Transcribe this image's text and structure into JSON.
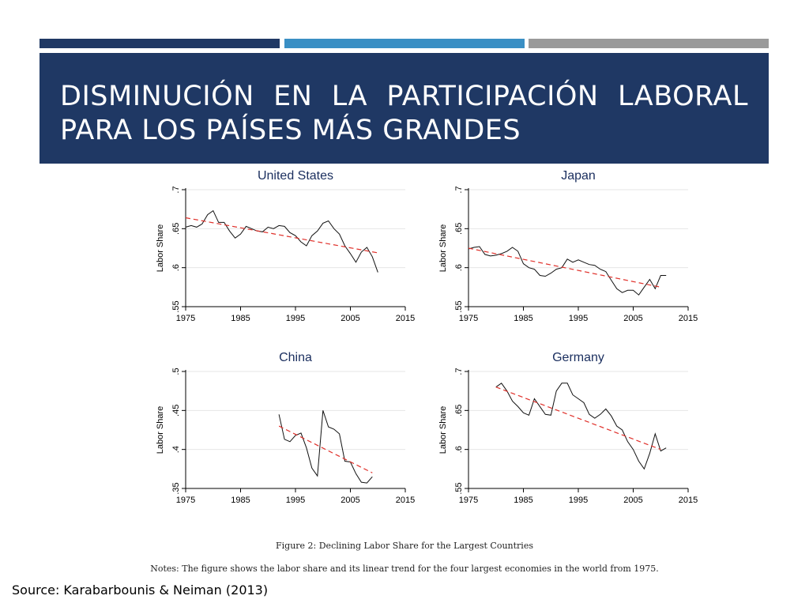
{
  "header": {
    "title": "DISMINUCIÓN EN LA PARTICIPACIÓN LABORAL PARA LOS PAÍSES MÁS GRANDES",
    "colors": {
      "bar_dark": "#1f3864",
      "bar_blue": "#3a8fc4",
      "bar_gray": "#9a9a9a"
    }
  },
  "figure_caption": "Figure 2: Declining Labor Share for the Largest Countries",
  "notes": "Notes: The figure shows the labor share and its linear trend for the four largest economies in the world from 1975.",
  "source": "Source: Karabarbounis & Neiman (2013)",
  "chart_data": [
    {
      "type": "line",
      "title": "United States",
      "ylabel": "Labor Share",
      "xlim": [
        1975,
        2015
      ],
      "ylim": [
        0.55,
        0.7
      ],
      "xticks": [
        "1975",
        "1985",
        "1995",
        "2005",
        "2015"
      ],
      "yticks": [
        ".55",
        ".6",
        ".65",
        ".7"
      ],
      "ytick_values": [
        0.55,
        0.6,
        0.65,
        0.7
      ],
      "grid": true,
      "series": [
        {
          "x": [
            1975,
            1976,
            1977,
            1978,
            1979,
            1980,
            1981,
            1982,
            1983,
            1984,
            1985,
            1986,
            1987,
            1988,
            1989,
            1990,
            1991,
            1992,
            1993,
            1994,
            1995,
            1996,
            1997,
            1998,
            1999,
            2000,
            2001,
            2002,
            2003,
            2004,
            2005,
            2006,
            2007,
            2008,
            2009,
            2010
          ],
          "values": [
            0.652,
            0.654,
            0.652,
            0.656,
            0.668,
            0.673,
            0.658,
            0.658,
            0.647,
            0.638,
            0.643,
            0.653,
            0.65,
            0.647,
            0.646,
            0.652,
            0.65,
            0.654,
            0.653,
            0.645,
            0.641,
            0.633,
            0.628,
            0.641,
            0.647,
            0.657,
            0.66,
            0.65,
            0.643,
            0.628,
            0.618,
            0.607,
            0.62,
            0.626,
            0.614,
            0.594
          ]
        }
      ],
      "trend": {
        "x": [
          1975,
          2010
        ],
        "values": [
          0.664,
          0.619
        ],
        "color": "#e0302a"
      }
    },
    {
      "type": "line",
      "title": "Japan",
      "ylabel": "Labor Share",
      "xlim": [
        1975,
        2015
      ],
      "ylim": [
        0.55,
        0.7
      ],
      "xticks": [
        "1975",
        "1985",
        "1995",
        "2005",
        "2015"
      ],
      "yticks": [
        ".55",
        ".6",
        ".65",
        ".7"
      ],
      "ytick_values": [
        0.55,
        0.6,
        0.65,
        0.7
      ],
      "grid": true,
      "series": [
        {
          "x": [
            1975,
            1976,
            1977,
            1978,
            1979,
            1980,
            1981,
            1982,
            1983,
            1984,
            1985,
            1986,
            1987,
            1988,
            1989,
            1990,
            1991,
            1992,
            1993,
            1994,
            1995,
            1996,
            1997,
            1998,
            1999,
            2000,
            2001,
            2002,
            2003,
            2004,
            2005,
            2006,
            2007,
            2008,
            2009,
            2010,
            2011
          ],
          "values": [
            0.624,
            0.626,
            0.627,
            0.617,
            0.615,
            0.616,
            0.618,
            0.621,
            0.626,
            0.621,
            0.605,
            0.6,
            0.598,
            0.59,
            0.589,
            0.593,
            0.598,
            0.6,
            0.611,
            0.607,
            0.61,
            0.607,
            0.604,
            0.603,
            0.598,
            0.595,
            0.584,
            0.573,
            0.568,
            0.571,
            0.571,
            0.565,
            0.575,
            0.585,
            0.573,
            0.59,
            0.59
          ]
        }
      ],
      "trend": {
        "x": [
          1975,
          2010
        ],
        "values": [
          0.625,
          0.575
        ],
        "color": "#e0302a"
      }
    },
    {
      "type": "line",
      "title": "China",
      "ylabel": "Labor Share",
      "xlim": [
        1975,
        2015
      ],
      "ylim": [
        0.35,
        0.5
      ],
      "xticks": [
        "1975",
        "1985",
        "1995",
        "2005",
        "2015"
      ],
      "yticks": [
        ".35",
        ".4",
        ".45",
        ".5"
      ],
      "ytick_values": [
        0.35,
        0.4,
        0.45,
        0.5
      ],
      "grid": true,
      "series": [
        {
          "x": [
            1992,
            1993,
            1994,
            1995,
            1996,
            1997,
            1998,
            1999,
            2000,
            2001,
            2002,
            2003,
            2004,
            2005,
            2006,
            2007,
            2008,
            2009
          ],
          "values": [
            0.445,
            0.413,
            0.41,
            0.418,
            0.421,
            0.402,
            0.376,
            0.366,
            0.45,
            0.429,
            0.426,
            0.42,
            0.385,
            0.384,
            0.369,
            0.358,
            0.357,
            0.365
          ]
        }
      ],
      "trend": {
        "x": [
          1992,
          2009
        ],
        "values": [
          0.43,
          0.37
        ],
        "color": "#e0302a"
      }
    },
    {
      "type": "line",
      "title": "Germany",
      "ylabel": "Labor Share",
      "xlim": [
        1975,
        2015
      ],
      "ylim": [
        0.55,
        0.7
      ],
      "xticks": [
        "1975",
        "1985",
        "1995",
        "2005",
        "2015"
      ],
      "yticks": [
        ".55",
        ".6",
        ".65",
        ".7"
      ],
      "ytick_values": [
        0.55,
        0.6,
        0.65,
        0.7
      ],
      "grid": true,
      "series": [
        {
          "x": [
            1980,
            1981,
            1982,
            1983,
            1984,
            1985,
            1986,
            1987,
            1988,
            1989,
            1990,
            1991,
            1992,
            1993,
            1994,
            1995,
            1996,
            1997,
            1998,
            1999,
            2000,
            2001,
            2002,
            2003,
            2004,
            2005,
            2006,
            2007,
            2008,
            2009,
            2010,
            2011
          ],
          "values": [
            0.68,
            0.685,
            0.675,
            0.662,
            0.655,
            0.647,
            0.644,
            0.665,
            0.655,
            0.645,
            0.644,
            0.675,
            0.685,
            0.685,
            0.67,
            0.665,
            0.66,
            0.645,
            0.64,
            0.645,
            0.652,
            0.643,
            0.63,
            0.625,
            0.61,
            0.6,
            0.585,
            0.575,
            0.595,
            0.62,
            0.598,
            0.602
          ]
        }
      ],
      "trend": {
        "x": [
          1980,
          2010
        ],
        "values": [
          0.68,
          0.6
        ],
        "color": "#e0302a"
      }
    }
  ]
}
